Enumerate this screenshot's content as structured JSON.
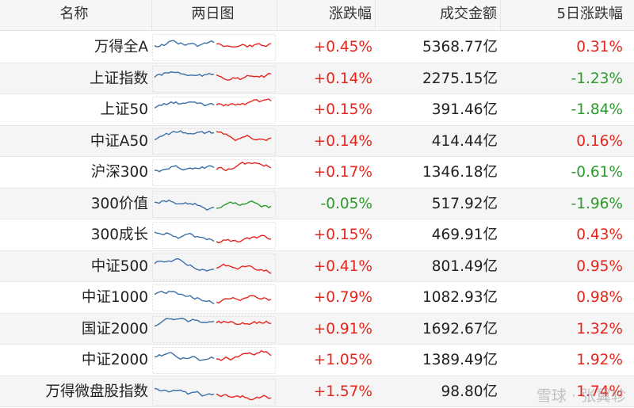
{
  "header": [
    "名称",
    "两日图",
    "涨跌幅",
    "成交金额",
    "5日涨跌幅"
  ],
  "table": {
    "rows": [
      [
        "万得全A",
        "+0.45%",
        "5368.77亿",
        "0.31%"
      ],
      [
        "上证指数",
        "+0.14%",
        "2275.15亿",
        "-1.23%"
      ],
      [
        "上证50",
        "+0.15%",
        "391.46亿",
        "-1.84%"
      ],
      [
        "中证A50",
        "+0.14%",
        "414.44亿",
        "0.16%"
      ],
      [
        "沪深300",
        "+0.17%",
        "1346.18亿",
        "-0.61%"
      ],
      [
        "300价值",
        "-0.05%",
        "517.92亿",
        "-1.96%"
      ],
      [
        "300成长",
        "+0.15%",
        "469.91亿",
        "0.43%"
      ],
      [
        "中证500",
        "+0.41%",
        "801.49亿",
        "0.95%"
      ],
      [
        "中证1000",
        "+0.79%",
        "1082.93亿",
        "0.98%"
      ],
      [
        "国证2000",
        "+0.91%",
        "1692.67亿",
        "1.32%"
      ],
      [
        "中证2000",
        "+1.05%",
        "1389.49亿",
        "1.92%"
      ],
      [
        "万得微盘股指数",
        "+1.57%",
        "98.80亿",
        "1.74%"
      ]
    ]
  },
  "watermark": "雪球 · 张翼轸"
}
